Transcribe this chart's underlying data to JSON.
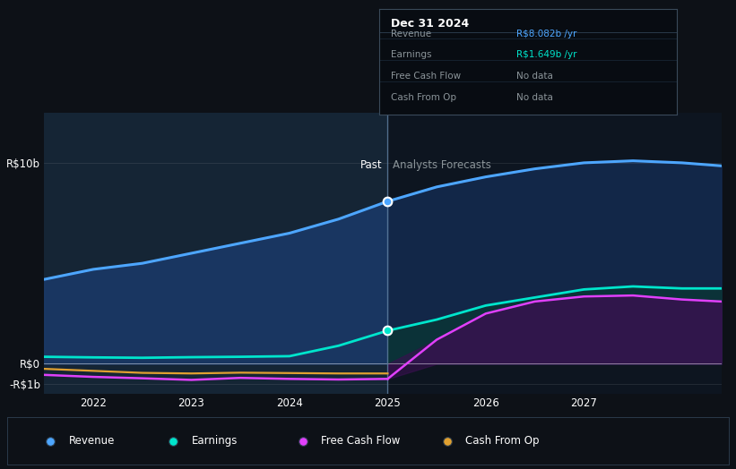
{
  "bg_color": "#0d1117",
  "text_color": "#ffffff",
  "dim_text_color": "#8b9499",
  "divider_line_color": "#6a8aaa",
  "ylim": [
    -1.5,
    12.5
  ],
  "xlim_start": 2021.5,
  "xlim_end": 2028.4,
  "divider_x": 2025.0,
  "revenue_color": "#4da6ff",
  "earnings_color": "#00e5cc",
  "fcf_color": "#e040fb",
  "cashop_color": "#e0a030",
  "revenue_x": [
    2021.5,
    2022.0,
    2022.5,
    2023.0,
    2023.5,
    2024.0,
    2024.5,
    2025.0,
    2025.5,
    2026.0,
    2026.5,
    2027.0,
    2027.5,
    2028.0,
    2028.4
  ],
  "revenue_y": [
    4.2,
    4.7,
    5.0,
    5.5,
    6.0,
    6.5,
    7.2,
    8.082,
    8.8,
    9.3,
    9.7,
    10.0,
    10.1,
    10.0,
    9.85
  ],
  "earnings_past_x": [
    2021.5,
    2022.0,
    2022.5,
    2023.0,
    2023.5,
    2024.0,
    2024.5,
    2025.0
  ],
  "earnings_past_y": [
    0.35,
    0.32,
    0.3,
    0.33,
    0.35,
    0.38,
    0.9,
    1.649
  ],
  "earnings_future_x": [
    2025.0,
    2025.5,
    2026.0,
    2026.5,
    2027.0,
    2027.5,
    2028.0,
    2028.4
  ],
  "earnings_future_y": [
    1.649,
    2.2,
    2.9,
    3.3,
    3.7,
    3.85,
    3.75,
    3.75
  ],
  "fcf_past_x": [
    2021.5,
    2022.0,
    2022.5,
    2023.0,
    2023.5,
    2024.0,
    2024.5,
    2025.0
  ],
  "fcf_past_y": [
    -0.55,
    -0.65,
    -0.72,
    -0.8,
    -0.7,
    -0.75,
    -0.78,
    -0.75
  ],
  "fcf_future_x": [
    2025.0,
    2025.5,
    2026.0,
    2026.5,
    2027.0,
    2027.5,
    2028.0,
    2028.4
  ],
  "fcf_future_y": [
    -0.75,
    1.2,
    2.5,
    3.1,
    3.35,
    3.4,
    3.2,
    3.1
  ],
  "cashop_past_x": [
    2021.5,
    2022.0,
    2022.5,
    2023.0,
    2023.5,
    2024.0,
    2024.5,
    2025.0
  ],
  "cashop_past_y": [
    -0.25,
    -0.35,
    -0.45,
    -0.48,
    -0.44,
    -0.46,
    -0.48,
    -0.48
  ],
  "legend_items": [
    {
      "label": "Revenue",
      "color": "#4da6ff"
    },
    {
      "label": "Earnings",
      "color": "#00e5cc"
    },
    {
      "label": "Free Cash Flow",
      "color": "#e040fb"
    },
    {
      "label": "Cash From Op",
      "color": "#e0a030"
    }
  ],
  "tooltip": {
    "title": "Dec 31 2024",
    "rows": [
      {
        "label": "Revenue",
        "value": "R$8.082b /yr",
        "value_color": "#4da6ff"
      },
      {
        "label": "Earnings",
        "value": "R$1.649b /yr",
        "value_color": "#00e5cc"
      },
      {
        "label": "Free Cash Flow",
        "value": "No data",
        "value_color": "#8b9499"
      },
      {
        "label": "Cash From Op",
        "value": "No data",
        "value_color": "#8b9499"
      }
    ]
  }
}
